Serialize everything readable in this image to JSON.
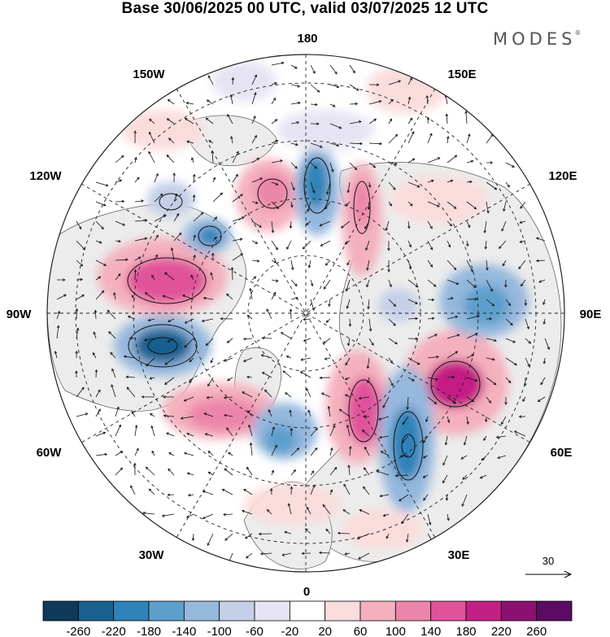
{
  "title": "Base 30/06/2025 00 UTC, valid 03/07/2025 12 UTC",
  "brand": {
    "name": "MODES",
    "mark": "®"
  },
  "longitude_labels": {
    "top": "180",
    "top_left": "150W",
    "top_right": "150E",
    "upper_left": "120W",
    "upper_right": "120E",
    "left": "90W",
    "right": "90E",
    "lower_left": "60W",
    "lower_right": "60E",
    "bottom_left": "30W",
    "bottom_right": "30E",
    "bottom": "0"
  },
  "vector_scale": {
    "value": "30"
  },
  "colorbar": {
    "labels": [
      "-260",
      "-220",
      "-180",
      "-140",
      "-100",
      "-60",
      "-20",
      "20",
      "60",
      "100",
      "140",
      "180",
      "220",
      "260"
    ],
    "colors": [
      "#0d3a5c",
      "#18618f",
      "#2f83b8",
      "#5d9fcc",
      "#95b8dd",
      "#c5cfe8",
      "#e6e4f2",
      "#ffffff",
      "#fbdcdc",
      "#f4b0be",
      "#ec85aa",
      "#e0529a",
      "#c41f84",
      "#8c0f72",
      "#5b0a66"
    ]
  },
  "colors": {
    "land": "#ececec",
    "anomaly_pos": "#e0529a",
    "anomaly_neg": "#2f83b8"
  }
}
